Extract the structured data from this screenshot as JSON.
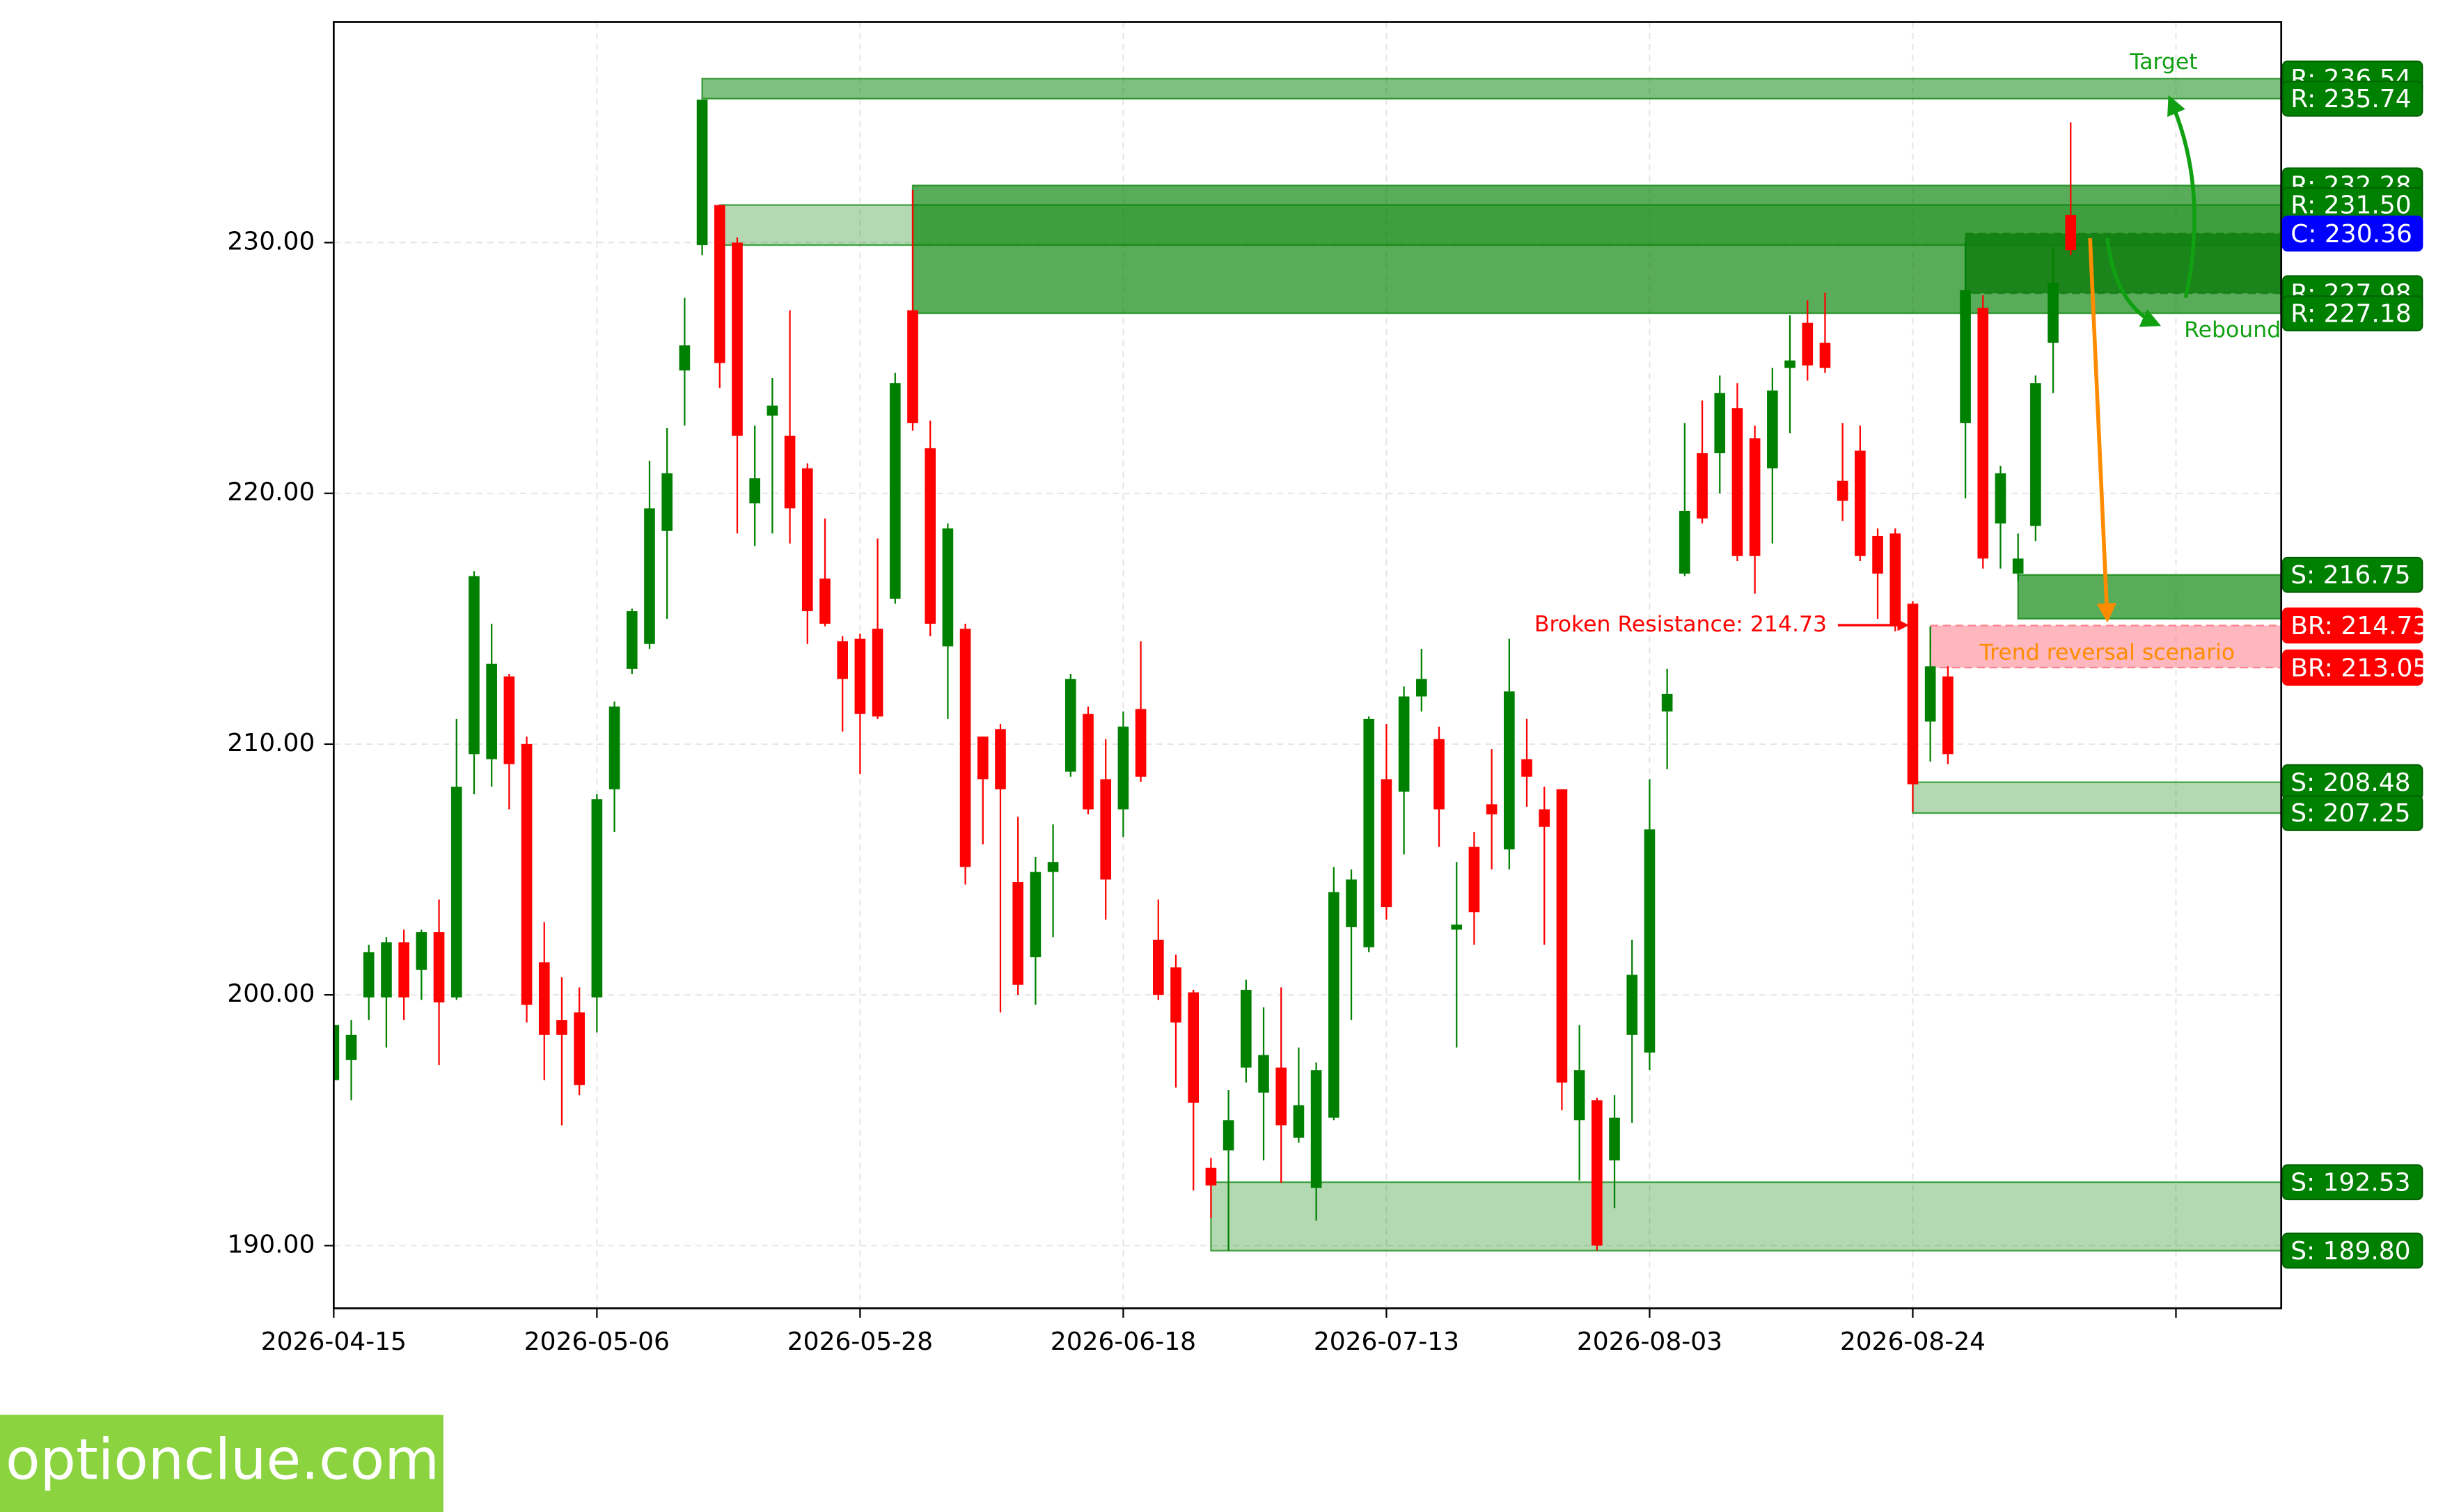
{
  "chart_data": {
    "type": "candlestick",
    "x": [
      0,
      1,
      2,
      3,
      4,
      5,
      6,
      7,
      8,
      9,
      10,
      11,
      12,
      13,
      14,
      15,
      16,
      17,
      18,
      19,
      20,
      21,
      22,
      23,
      24,
      25,
      26,
      27,
      28,
      29,
      30,
      31,
      32,
      33,
      34,
      35,
      36,
      37,
      38,
      39,
      40,
      41,
      42,
      43,
      44,
      45,
      46,
      47,
      48,
      49,
      50,
      51,
      52,
      53,
      54,
      55,
      56,
      57,
      58,
      59,
      60,
      61,
      62,
      63,
      64,
      65,
      66,
      67,
      68,
      69,
      70,
      71,
      72,
      73,
      74,
      75,
      76,
      77,
      78,
      79,
      80,
      81,
      82,
      83,
      84,
      85,
      86,
      87,
      88,
      89,
      90,
      91,
      92,
      93,
      94,
      95,
      96,
      97,
      98,
      99
    ],
    "open": [
      196.6,
      197.4,
      199.9,
      199.9,
      202.1,
      201,
      202.5,
      199.9,
      209.6,
      209.4,
      212.7,
      210,
      201.3,
      199,
      199.3,
      199.9,
      208.2,
      213,
      214,
      218.5,
      224.9,
      229.9,
      231.5,
      230,
      219.6,
      223.1,
      222.3,
      221,
      216.6,
      214.1,
      214.2,
      214.6,
      215.8,
      227.3,
      221.8,
      213.9,
      214.6,
      210.3,
      210.6,
      204.5,
      201.5,
      204.9,
      208.9,
      211.2,
      208.6,
      207.4,
      211.4,
      202.2,
      201.1,
      200.1,
      193.1,
      193.8,
      197.1,
      196.1,
      197.1,
      194.3,
      192.3,
      195.1,
      202.7,
      201.9,
      208.6,
      208.1,
      211.9,
      210.2,
      202.6,
      205.9,
      207.6,
      205.8,
      209.4,
      207.4,
      208.2,
      195,
      195.8,
      193.4,
      198.4,
      197.7,
      211.3,
      216.8,
      221.6,
      221.6,
      223.4,
      222.2,
      221,
      225,
      226.8,
      226,
      220.5,
      221.7,
      218.3,
      218.4,
      215.6,
      210.9,
      212.7,
      222.8,
      227.4,
      218.8,
      216.8,
      218.7,
      226,
      231.1
    ],
    "high": [
      199.5,
      199,
      202,
      202.3,
      202.6,
      202.6,
      203.8,
      211,
      216.9,
      214.8,
      212.8,
      210.3,
      202.9,
      200.7,
      200.3,
      208,
      211.7,
      215.4,
      221.3,
      222.6,
      227.8,
      235.7,
      231.5,
      230.2,
      222.7,
      224.6,
      227.3,
      221.2,
      219,
      214.3,
      214.4,
      218.2,
      224.8,
      232.1,
      222.9,
      218.8,
      214.8,
      210.3,
      210.8,
      207.1,
      205.5,
      206.8,
      212.8,
      211.5,
      210.2,
      211.3,
      214.1,
      203.8,
      201.6,
      200.2,
      193.5,
      196.2,
      200.6,
      199.5,
      200.3,
      197.9,
      197.3,
      205.1,
      205,
      211.1,
      210.8,
      212.3,
      213.8,
      210.7,
      205.3,
      206.5,
      209.8,
      214.2,
      211,
      208.3,
      208.2,
      198.8,
      195.9,
      196,
      202.2,
      208.6,
      213,
      222.8,
      223.7,
      224.7,
      224.4,
      222.7,
      225,
      227.1,
      227.7,
      228,
      222.8,
      222.7,
      218.6,
      218.6,
      215.7,
      214.7,
      213.1,
      230,
      227.9,
      221.1,
      218.4,
      224.7,
      229.8,
      234.8
    ],
    "low": [
      196,
      195.8,
      199,
      197.9,
      199,
      199.8,
      197.2,
      199.8,
      208,
      208.3,
      207.4,
      198.9,
      196.6,
      194.8,
      196,
      198.5,
      206.5,
      212.8,
      213.8,
      215,
      222.7,
      229.5,
      224.2,
      218.4,
      217.9,
      218.4,
      218,
      214,
      214.7,
      210.5,
      208.8,
      211,
      215.6,
      222.5,
      214.3,
      211,
      204.4,
      206,
      199.3,
      200,
      199.6,
      202.3,
      208.7,
      207.2,
      203,
      206.3,
      208.5,
      199.8,
      196.3,
      192.2,
      191.1,
      189.8,
      196.5,
      193.4,
      192.5,
      194.1,
      191,
      195,
      199,
      201.7,
      203,
      205.6,
      211.3,
      205.9,
      197.9,
      202,
      205,
      205,
      207.5,
      202,
      195.4,
      192.6,
      189.8,
      191.5,
      194.9,
      197,
      209,
      216.7,
      218.8,
      220,
      217.3,
      216,
      218,
      222.4,
      224.5,
      224.8,
      218.9,
      217.3,
      215,
      214.5,
      207.3,
      209.3,
      209.2,
      219.8,
      217,
      217,
      216.5,
      218.1,
      224,
      229.5
    ],
    "close": [
      198.8,
      198.4,
      201.7,
      202.1,
      199.9,
      202.5,
      199.7,
      208.3,
      216.7,
      213.2,
      209.2,
      199.6,
      198.4,
      198.4,
      196.4,
      207.8,
      211.5,
      215.3,
      219.4,
      220.8,
      225.9,
      235.7,
      225.2,
      222.3,
      220.6,
      223.5,
      219.4,
      215.3,
      214.8,
      212.6,
      211.2,
      211.1,
      224.4,
      222.8,
      214.8,
      218.6,
      205.1,
      208.6,
      208.2,
      200.4,
      204.9,
      205.3,
      212.6,
      207.4,
      204.6,
      210.7,
      208.7,
      200,
      198.9,
      195.7,
      192.4,
      195,
      200.2,
      197.6,
      194.8,
      195.6,
      197,
      204.1,
      204.6,
      211,
      203.5,
      211.9,
      212.6,
      207.4,
      202.8,
      203.3,
      207.2,
      212.1,
      208.7,
      206.7,
      196.5,
      197,
      190,
      195.1,
      200.8,
      206.6,
      212,
      219.3,
      219,
      224,
      217.5,
      217.5,
      224.1,
      225.3,
      225.1,
      225,
      219.7,
      217.5,
      216.8,
      214.7,
      208.4,
      213.1,
      209.6,
      228.1,
      217.4,
      220.8,
      217.4,
      224.4,
      228.4,
      229.7
    ],
    "up_color": "#008000",
    "down_color": "#ff0000",
    "xlim": [
      0,
      111
    ],
    "xticks": [
      {
        "value": 0,
        "label": "2026-04-15"
      },
      {
        "value": 15,
        "label": "2026-05-06"
      },
      {
        "value": 30,
        "label": "2026-05-28"
      },
      {
        "value": 45,
        "label": "2026-06-18"
      },
      {
        "value": 60,
        "label": "2026-07-13"
      },
      {
        "value": 75,
        "label": "2026-08-03"
      },
      {
        "value": 90,
        "label": "2026-08-24"
      },
      {
        "value": 105,
        "label": null
      }
    ],
    "ylim": [
      187.5,
      238.8
    ],
    "yticks": [
      {
        "value": 190,
        "label": "190.00"
      },
      {
        "value": 200,
        "label": "200.00"
      },
      {
        "value": 210,
        "label": "210.00"
      },
      {
        "value": 220,
        "label": "220.00"
      },
      {
        "value": 230,
        "label": "230.00"
      }
    ],
    "grid": true,
    "zones": [
      {
        "from": 21,
        "top": 236.54,
        "bottom": 235.74,
        "color": "#008000",
        "opacity": 0.5
      },
      {
        "from": 22,
        "top": 231.5,
        "bottom": 229.9,
        "color": "#008000",
        "opacity": 0.3
      },
      {
        "from": 33,
        "top": 232.28,
        "bottom": 227.18,
        "color": "#008000",
        "opacity": 0.65
      },
      {
        "from": 93,
        "top": 230.36,
        "bottom": 227.98,
        "color": "#0b7a0b",
        "opacity": 0.8
      },
      {
        "from": 96,
        "top": 216.75,
        "bottom": 215.0,
        "color": "#008000",
        "opacity": 0.65
      },
      {
        "from": 91,
        "top": 214.73,
        "bottom": 213.05,
        "color": "#ff6070",
        "opacity": 0.45
      },
      {
        "from": 90,
        "top": 208.48,
        "bottom": 207.25,
        "color": "#008000",
        "opacity": 0.3
      },
      {
        "from": 50,
        "top": 192.53,
        "bottom": 189.8,
        "color": "#008000",
        "opacity": 0.3
      }
    ],
    "levels": [
      {
        "label": "R: 236.54",
        "value": 236.54,
        "color": "#008000"
      },
      {
        "label": "R: 235.74",
        "value": 235.74,
        "color": "#008000"
      },
      {
        "label": "R: 232.28",
        "value": 232.28,
        "color": "#008000"
      },
      {
        "label": "R: 231.50",
        "value": 231.5,
        "color": "#008000"
      },
      {
        "label": "R: 227.98",
        "value": 227.98,
        "color": "#008000"
      },
      {
        "label": "R: 227.18",
        "value": 227.18,
        "color": "#008000"
      },
      {
        "label": "C: 230.36",
        "value": 230.36,
        "color": "#0000ff"
      },
      {
        "label": "S: 216.75",
        "value": 216.75,
        "color": "#008000"
      },
      {
        "label": "BR: 214.73",
        "value": 214.73,
        "color": "#ff0000"
      },
      {
        "label": "BR: 213.05",
        "value": 213.05,
        "color": "#ff0000"
      },
      {
        "label": "S: 208.48",
        "value": 208.48,
        "color": "#008000"
      },
      {
        "label": "S: 207.25",
        "value": 207.25,
        "color": "#008000"
      },
      {
        "label": "S: 192.53",
        "value": 192.53,
        "color": "#008000"
      },
      {
        "label": "S: 189.80",
        "value": 189.8,
        "color": "#008000"
      }
    ],
    "annotations": {
      "target": "Target",
      "rebound": "Rebound",
      "trend": "Trend reversal scenario",
      "broken": "Broken Resistance: 214.73"
    }
  },
  "watermark": "optionclue.com"
}
